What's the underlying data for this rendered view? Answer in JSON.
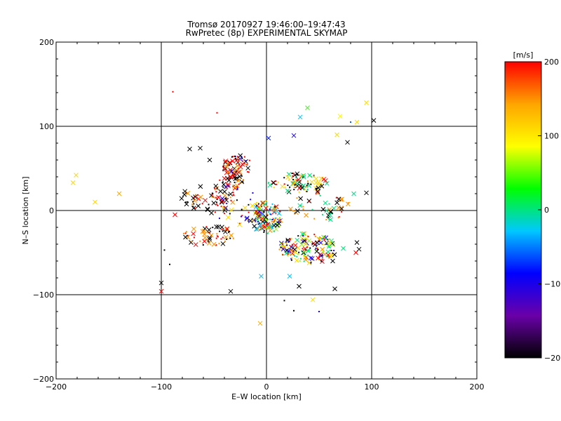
{
  "chart_data": {
    "type": "scatter",
    "title": "Tromsø 20170927 19:46:00–19:47:43",
    "subtitle": "RwPretec (8p) EXPERIMENTAL SKYMAP",
    "xlabel": "E–W location [km]",
    "ylabel": "N–S location [km]",
    "xlim": [
      -200,
      200
    ],
    "ylim": [
      -200,
      200
    ],
    "x_ticks": [
      "−200",
      "−100",
      "0",
      "100",
      "200"
    ],
    "y_ticks": [
      "−200",
      "−100",
      "0",
      "100",
      "200"
    ],
    "grid_lines": [
      -100,
      0,
      100
    ],
    "colorbar": {
      "label": "[m/s]",
      "range": [
        -200,
        200
      ],
      "ticks": [
        "200",
        "100",
        "0",
        "−100",
        "−200"
      ],
      "colors": [
        "#000000",
        "#6a00a8",
        "#0000ff",
        "#00c8ff",
        "#00ff00",
        "#ffff00",
        "#ffa500",
        "#ff0000"
      ]
    },
    "marker_legend": {
      "cross": "x marker",
      "dot": "small dot"
    },
    "points": [
      {
        "x": -89,
        "y": 141,
        "v": 200,
        "m": "dot"
      },
      {
        "x": -47,
        "y": 116,
        "v": 200,
        "m": "dot"
      },
      {
        "x": -184,
        "y": 33,
        "v": 110,
        "m": "cross"
      },
      {
        "x": -181,
        "y": 42,
        "v": 110,
        "m": "cross"
      },
      {
        "x": -163,
        "y": 10,
        "v": 110,
        "m": "cross"
      },
      {
        "x": -140,
        "y": 20,
        "v": 140,
        "m": "cross"
      },
      {
        "x": 39,
        "y": 122,
        "v": 40,
        "m": "cross"
      },
      {
        "x": 32,
        "y": 111,
        "v": -30,
        "m": "cross"
      },
      {
        "x": 95,
        "y": 128,
        "v": 110,
        "m": "cross"
      },
      {
        "x": 102,
        "y": 107,
        "v": -200,
        "m": "cross"
      },
      {
        "x": 86,
        "y": 105,
        "v": 110,
        "m": "cross"
      },
      {
        "x": 70,
        "y": 112,
        "v": 90,
        "m": "cross"
      },
      {
        "x": 80,
        "y": 105,
        "v": -60,
        "m": "dot"
      },
      {
        "x": 67,
        "y": 90,
        "v": 110,
        "m": "cross"
      },
      {
        "x": 2,
        "y": 86,
        "v": -80,
        "m": "cross"
      },
      {
        "x": 26,
        "y": 89,
        "v": -100,
        "m": "cross"
      },
      {
        "x": 77,
        "y": 81,
        "v": -200,
        "m": "cross"
      },
      {
        "x": 95,
        "y": 21,
        "v": -200,
        "m": "cross"
      },
      {
        "x": 83,
        "y": 20,
        "v": 0,
        "m": "cross"
      },
      {
        "x": -100,
        "y": -86,
        "v": -200,
        "m": "cross"
      },
      {
        "x": -100,
        "y": -96,
        "v": 200,
        "m": "cross"
      },
      {
        "x": -92,
        "y": -64,
        "v": -200,
        "m": "dot"
      },
      {
        "x": -97,
        "y": -47,
        "v": -200,
        "m": "dot"
      },
      {
        "x": -34,
        "y": -96,
        "v": -200,
        "m": "cross"
      },
      {
        "x": -6,
        "y": -134,
        "v": 140,
        "m": "cross"
      },
      {
        "x": 44,
        "y": -106,
        "v": 110,
        "m": "cross"
      },
      {
        "x": 26,
        "y": -119,
        "v": -200,
        "m": "dot"
      },
      {
        "x": 17,
        "y": -107,
        "v": -200,
        "m": "dot"
      },
      {
        "x": 50,
        "y": -120,
        "v": -100,
        "m": "dot"
      },
      {
        "x": 65,
        "y": -93,
        "v": -200,
        "m": "cross"
      },
      {
        "x": -87,
        "y": -5,
        "v": 200,
        "m": "cross"
      },
      {
        "x": -73,
        "y": 73,
        "v": -200,
        "m": "cross"
      },
      {
        "x": -63,
        "y": 74,
        "v": -200,
        "m": "cross"
      },
      {
        "x": 85,
        "y": -50,
        "v": 200,
        "m": "cross"
      },
      {
        "x": 88,
        "y": -46,
        "v": -200,
        "m": "cross"
      },
      {
        "x": 86,
        "y": -38,
        "v": -200,
        "m": "cross"
      },
      {
        "x": 73,
        "y": -45,
        "v": 0,
        "m": "cross"
      },
      {
        "x": 63,
        "y": -60,
        "v": -200,
        "m": "cross"
      },
      {
        "x": 31,
        "y": -90,
        "v": -200,
        "m": "cross"
      },
      {
        "x": 22,
        "y": -78,
        "v": -30,
        "m": "cross"
      },
      {
        "x": -5,
        "y": -78,
        "v": -30,
        "m": "cross"
      },
      {
        "x": -54,
        "y": 60,
        "v": -200,
        "m": "cross"
      }
    ],
    "clusters": [
      {
        "cx": -27,
        "cy": 52,
        "rx": 14,
        "ry": 14,
        "n": 70,
        "palette": [
          200,
          200,
          200,
          150,
          -200,
          -100
        ]
      },
      {
        "cx": -33,
        "cy": 35,
        "rx": 12,
        "ry": 10,
        "n": 30,
        "palette": [
          200,
          150,
          -200,
          -200
        ]
      },
      {
        "cx": 30,
        "cy": 33,
        "rx": 28,
        "ry": 12,
        "n": 90,
        "palette": [
          200,
          150,
          110,
          -200,
          -200,
          0
        ]
      },
      {
        "cx": -55,
        "cy": 15,
        "rx": 28,
        "ry": 15,
        "n": 60,
        "palette": [
          200,
          200,
          -200,
          -200,
          150
        ]
      },
      {
        "cx": 0,
        "cy": -8,
        "rx": 14,
        "ry": 20,
        "n": 130,
        "palette": [
          200,
          -30,
          -100,
          0,
          60,
          -200,
          150
        ]
      },
      {
        "cx": 40,
        "cy": -45,
        "rx": 28,
        "ry": 18,
        "n": 160,
        "palette": [
          200,
          -200,
          0,
          110,
          150,
          -100,
          60
        ]
      },
      {
        "cx": -55,
        "cy": -30,
        "rx": 25,
        "ry": 12,
        "n": 60,
        "palette": [
          200,
          -200,
          150
        ]
      },
      {
        "cx": 50,
        "cy": 5,
        "rx": 30,
        "ry": 18,
        "n": 50,
        "palette": [
          200,
          -200,
          0,
          150
        ]
      },
      {
        "cx": -30,
        "cy": 5,
        "rx": 25,
        "ry": 25,
        "n": 50,
        "palette": [
          200,
          -200,
          -100,
          110
        ]
      }
    ]
  }
}
